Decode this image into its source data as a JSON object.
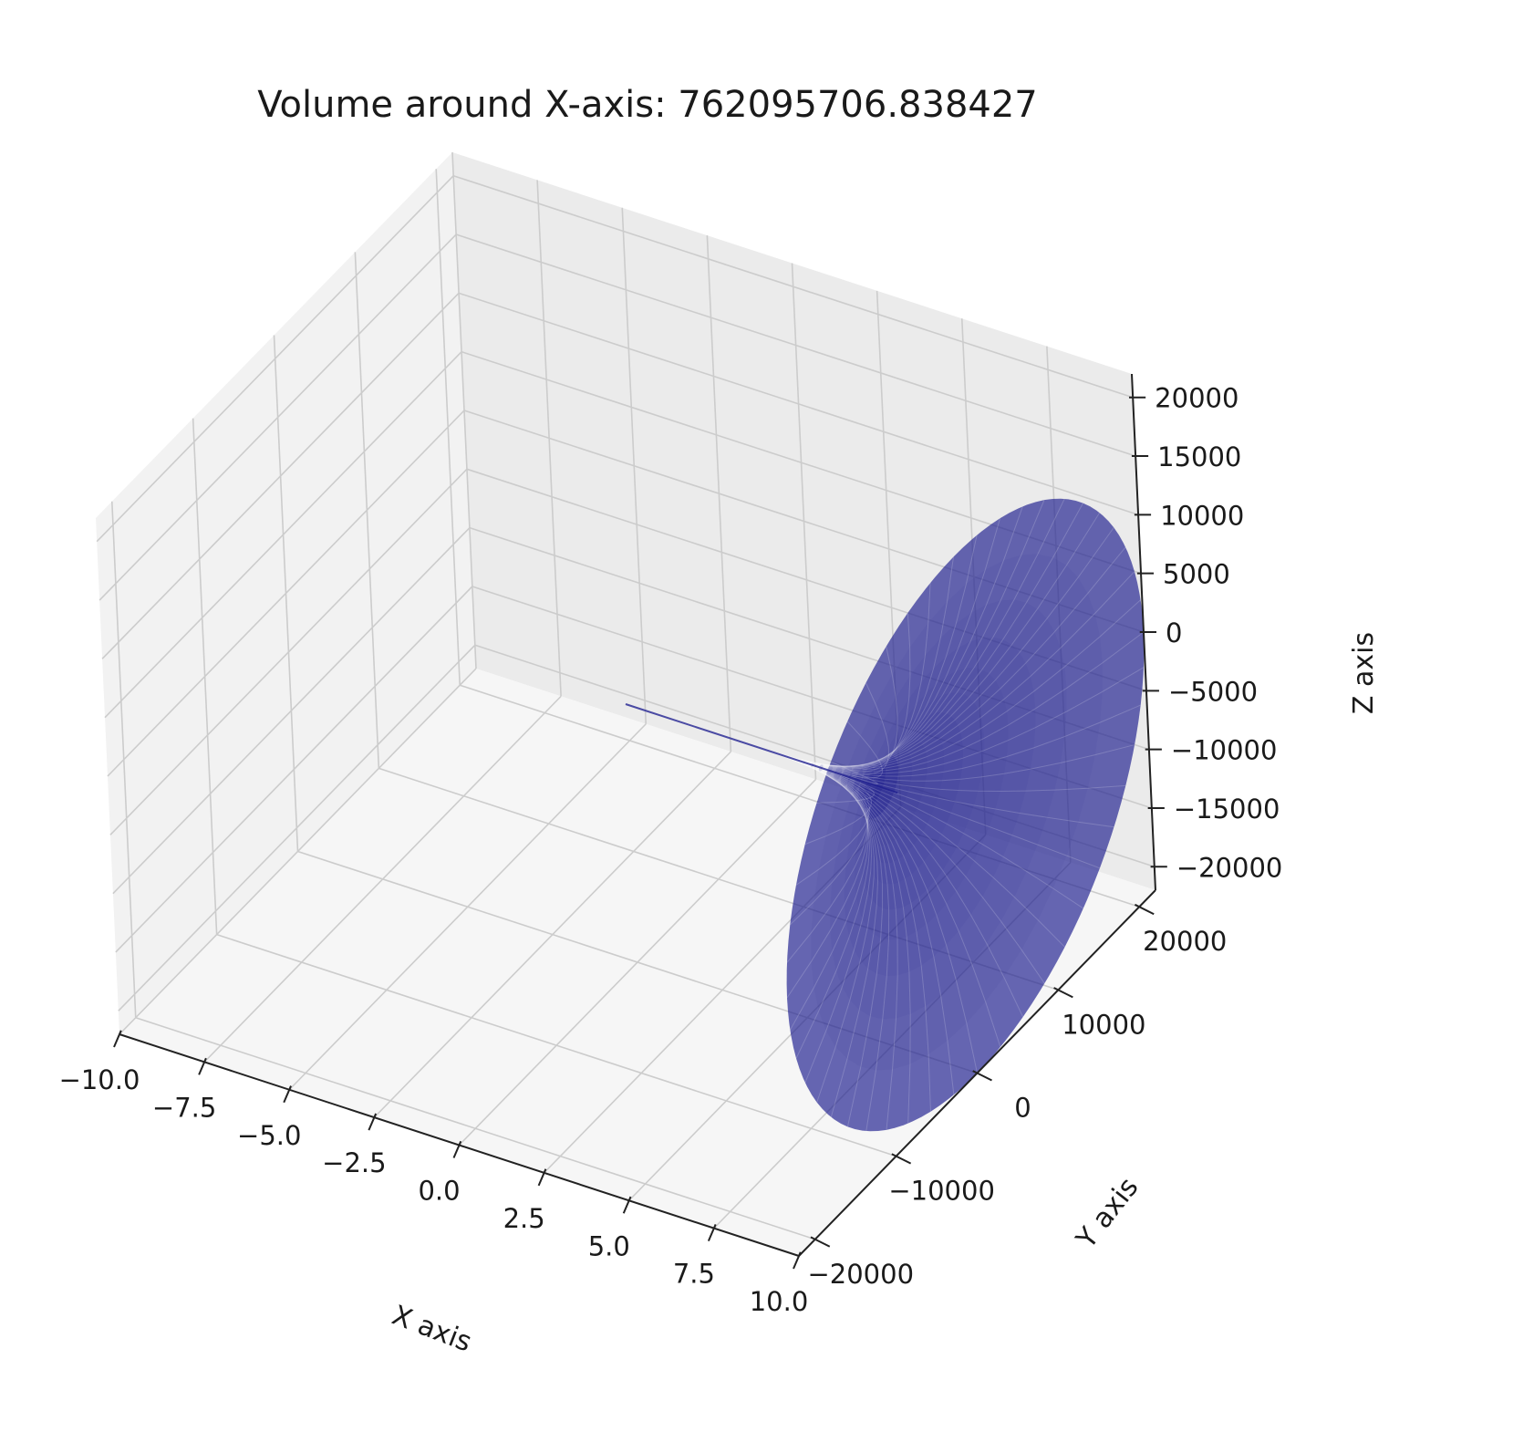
{
  "chart_data": {
    "type": "surface",
    "title": "Volume around X-axis: 762095706.838427",
    "xlabel": "X axis",
    "ylabel": "Y axis",
    "zlabel": "Z axis",
    "xlim": [
      -10,
      10
    ],
    "ylim": [
      -22000,
      22000
    ],
    "zlim": [
      -22000,
      22000
    ],
    "grid": true,
    "x_ticks": [
      "−10.0",
      "−7.5",
      "−5.0",
      "−2.5",
      "0.0",
      "2.5",
      "5.0",
      "7.5",
      "10.0"
    ],
    "y_ticks": [
      "−20000",
      "−10000",
      "0",
      "10000",
      "20000"
    ],
    "z_ticks": [
      "−20000",
      "−15000",
      "−10000",
      "−5000",
      "0",
      "5000",
      "10000",
      "15000",
      "20000"
    ],
    "surface": {
      "description": "solid of revolution of a curve rotated around the x-axis",
      "x_range": [
        0,
        10
      ],
      "max_radius": 22000,
      "color": "#1f1f8f",
      "opacity": 0.65
    }
  }
}
